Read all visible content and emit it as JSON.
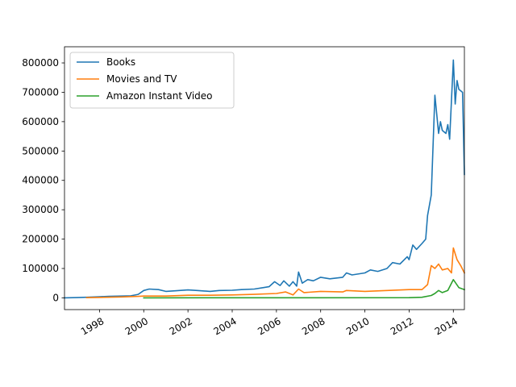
{
  "chart_data": {
    "type": "line",
    "x_axis_type": "date",
    "xlim": [
      "1996-06",
      "2014-07"
    ],
    "ylim": [
      -40000,
      855000
    ],
    "grid": false,
    "legend_position": "upper-left",
    "x_ticks": [
      {
        "date": "1998-01",
        "label": "1998"
      },
      {
        "date": "2000-01",
        "label": "2000"
      },
      {
        "date": "2002-01",
        "label": "2002"
      },
      {
        "date": "2004-01",
        "label": "2004"
      },
      {
        "date": "2006-01",
        "label": "2006"
      },
      {
        "date": "2008-01",
        "label": "2008"
      },
      {
        "date": "2010-01",
        "label": "2010"
      },
      {
        "date": "2012-01",
        "label": "2012"
      },
      {
        "date": "2014-01",
        "label": "2014"
      }
    ],
    "y_ticks": [
      {
        "value": 0,
        "label": "0"
      },
      {
        "value": 100000,
        "label": "100000"
      },
      {
        "value": 200000,
        "label": "200000"
      },
      {
        "value": 300000,
        "label": "300000"
      },
      {
        "value": 400000,
        "label": "400000"
      },
      {
        "value": 500000,
        "label": "500000"
      },
      {
        "value": 600000,
        "label": "600000"
      },
      {
        "value": 700000,
        "label": "700000"
      },
      {
        "value": 800000,
        "label": "800000"
      }
    ],
    "series": [
      {
        "name": "Books",
        "color": "#1f77b4",
        "points": [
          [
            "1996-06",
            200
          ],
          [
            "1997-01",
            800
          ],
          [
            "1997-06",
            2000
          ],
          [
            "1998-01",
            4000
          ],
          [
            "1998-06",
            5000
          ],
          [
            "1999-01",
            6000
          ],
          [
            "1999-06",
            7000
          ],
          [
            "1999-10",
            12000
          ],
          [
            "2000-01",
            25000
          ],
          [
            "2000-04",
            30000
          ],
          [
            "2000-09",
            28000
          ],
          [
            "2001-01",
            22000
          ],
          [
            "2001-06",
            24000
          ],
          [
            "2002-01",
            27000
          ],
          [
            "2002-06",
            25000
          ],
          [
            "2003-01",
            22000
          ],
          [
            "2003-06",
            25000
          ],
          [
            "2004-01",
            26000
          ],
          [
            "2004-06",
            28000
          ],
          [
            "2005-01",
            30000
          ],
          [
            "2005-06",
            35000
          ],
          [
            "2005-09",
            38000
          ],
          [
            "2005-12",
            55000
          ],
          [
            "2006-03",
            42000
          ],
          [
            "2006-05",
            58000
          ],
          [
            "2006-08",
            40000
          ],
          [
            "2006-10",
            55000
          ],
          [
            "2006-12",
            40000
          ],
          [
            "2007-01",
            88000
          ],
          [
            "2007-03",
            50000
          ],
          [
            "2007-06",
            62000
          ],
          [
            "2007-09",
            58000
          ],
          [
            "2008-01",
            70000
          ],
          [
            "2008-06",
            65000
          ],
          [
            "2009-01",
            70000
          ],
          [
            "2009-03",
            85000
          ],
          [
            "2009-06",
            78000
          ],
          [
            "2010-01",
            85000
          ],
          [
            "2010-04",
            95000
          ],
          [
            "2010-08",
            90000
          ],
          [
            "2011-01",
            100000
          ],
          [
            "2011-04",
            120000
          ],
          [
            "2011-08",
            115000
          ],
          [
            "2011-12",
            140000
          ],
          [
            "2012-01",
            130000
          ],
          [
            "2012-03",
            180000
          ],
          [
            "2012-05",
            165000
          ],
          [
            "2012-08",
            185000
          ],
          [
            "2012-10",
            200000
          ],
          [
            "2012-11",
            280000
          ],
          [
            "2013-01",
            350000
          ],
          [
            "2013-03",
            690000
          ],
          [
            "2013-05",
            560000
          ],
          [
            "2013-06",
            600000
          ],
          [
            "2013-07",
            570000
          ],
          [
            "2013-09",
            560000
          ],
          [
            "2013-10",
            590000
          ],
          [
            "2013-11",
            540000
          ],
          [
            "2014-01",
            810000
          ],
          [
            "2014-02",
            660000
          ],
          [
            "2014-03",
            740000
          ],
          [
            "2014-04",
            710000
          ],
          [
            "2014-06",
            700000
          ],
          [
            "2014-07",
            420000
          ]
        ]
      },
      {
        "name": "Movies and TV",
        "color": "#ff7f0e",
        "points": [
          [
            "1997-06",
            500
          ],
          [
            "1998-01",
            1500
          ],
          [
            "1999-01",
            3000
          ],
          [
            "1999-10",
            5000
          ],
          [
            "2000-01",
            6000
          ],
          [
            "2001-01",
            6000
          ],
          [
            "2002-01",
            9000
          ],
          [
            "2003-01",
            9000
          ],
          [
            "2004-01",
            10000
          ],
          [
            "2005-01",
            12000
          ],
          [
            "2006-01",
            15000
          ],
          [
            "2006-06",
            20000
          ],
          [
            "2006-10",
            10000
          ],
          [
            "2007-01",
            30000
          ],
          [
            "2007-04",
            18000
          ],
          [
            "2008-01",
            22000
          ],
          [
            "2009-01",
            20000
          ],
          [
            "2009-03",
            25000
          ],
          [
            "2010-01",
            22000
          ],
          [
            "2011-01",
            25000
          ],
          [
            "2012-01",
            28000
          ],
          [
            "2012-08",
            28000
          ],
          [
            "2012-11",
            45000
          ],
          [
            "2013-01",
            110000
          ],
          [
            "2013-03",
            100000
          ],
          [
            "2013-05",
            115000
          ],
          [
            "2013-07",
            95000
          ],
          [
            "2013-10",
            100000
          ],
          [
            "2013-12",
            85000
          ],
          [
            "2014-01",
            170000
          ],
          [
            "2014-03",
            130000
          ],
          [
            "2014-05",
            110000
          ],
          [
            "2014-07",
            85000
          ]
        ]
      },
      {
        "name": "Amazon Instant Video",
        "color": "#2ca02c",
        "points": [
          [
            "2000-01",
            0
          ],
          [
            "2012-01",
            500
          ],
          [
            "2012-08",
            2000
          ],
          [
            "2013-01",
            8000
          ],
          [
            "2013-03",
            15000
          ],
          [
            "2013-05",
            25000
          ],
          [
            "2013-07",
            18000
          ],
          [
            "2013-10",
            25000
          ],
          [
            "2014-01",
            62000
          ],
          [
            "2014-04",
            35000
          ],
          [
            "2014-07",
            28000
          ]
        ]
      }
    ]
  }
}
